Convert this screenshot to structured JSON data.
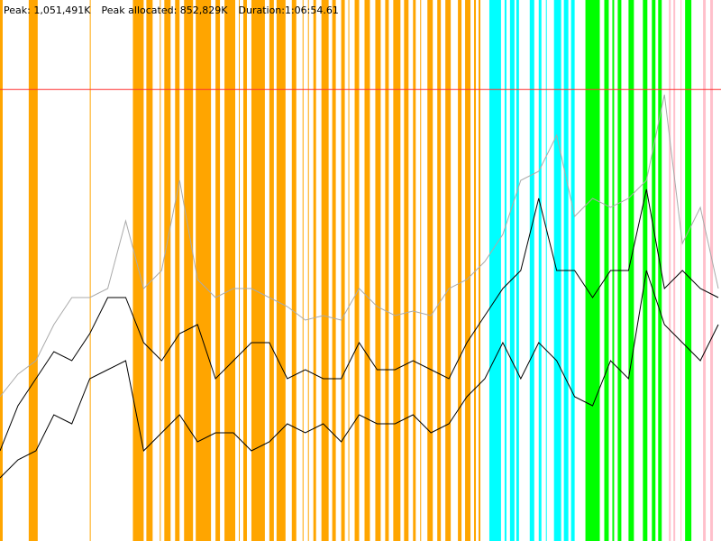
{
  "chart_data": {
    "type": "line",
    "title": [
      "Peak: 1,051,491K",
      "Peak allocated: 852,829K",
      "Duration:1:06:54.61"
    ],
    "xlim": [
      0,
      4015
    ],
    "ylim": [
      0,
      1260000
    ],
    "peak": 1051491,
    "peak_color": "#ff3030",
    "bands": [
      {
        "color": "#ffa500",
        "spans": [
          [
            0,
            15
          ],
          [
            160,
            210
          ],
          [
            500,
            505
          ],
          [
            740,
            800
          ],
          [
            815,
            850
          ],
          [
            890,
            895
          ],
          [
            915,
            950
          ],
          [
            975,
            1000
          ],
          [
            1025,
            1075
          ],
          [
            1090,
            1175
          ],
          [
            1200,
            1225
          ],
          [
            1250,
            1310
          ],
          [
            1330,
            1335
          ],
          [
            1355,
            1375
          ],
          [
            1400,
            1475
          ],
          [
            1500,
            1525
          ],
          [
            1540,
            1590
          ],
          [
            1625,
            1650
          ],
          [
            1685,
            1690
          ],
          [
            1715,
            1720
          ],
          [
            1745,
            1760
          ],
          [
            1790,
            1830
          ],
          [
            1850,
            1870
          ],
          [
            1900,
            1920
          ],
          [
            1940,
            1945
          ],
          [
            1975,
            2000
          ],
          [
            2030,
            2060
          ],
          [
            2090,
            2120
          ],
          [
            2145,
            2165
          ],
          [
            2190,
            2230
          ],
          [
            2250,
            2275
          ],
          [
            2300,
            2315
          ],
          [
            2340,
            2345
          ],
          [
            2380,
            2410
          ],
          [
            2435,
            2455
          ],
          [
            2480,
            2510
          ],
          [
            2550,
            2570
          ],
          [
            2590,
            2620
          ],
          [
            2640,
            2650
          ],
          [
            2665,
            2675
          ]
        ]
      },
      {
        "color": "#00ffff",
        "spans": [
          [
            2725,
            2790
          ],
          [
            2810,
            2820
          ],
          [
            2840,
            2865
          ],
          [
            2875,
            2890
          ],
          [
            2950,
            2975
          ],
          [
            3000,
            3015
          ],
          [
            3040,
            3045
          ],
          [
            3085,
            3125
          ],
          [
            3140,
            3165
          ],
          [
            3180,
            3200
          ]
        ]
      },
      {
        "color": "#00ff00",
        "spans": [
          [
            3260,
            3340
          ],
          [
            3365,
            3390
          ],
          [
            3410,
            3420
          ],
          [
            3440,
            3460
          ],
          [
            3500,
            3530
          ],
          [
            3580,
            3605
          ],
          [
            3630,
            3650
          ],
          [
            3665,
            3685
          ],
          [
            3815,
            3850
          ]
        ]
      },
      {
        "color": "#ffc0cb",
        "spans": [
          [
            3725,
            3735
          ],
          [
            3750,
            3760
          ],
          [
            3790,
            3795
          ],
          [
            3915,
            3930
          ],
          [
            3955,
            3970
          ]
        ]
      }
    ],
    "x": [
      0,
      100,
      200,
      300,
      400,
      500,
      600,
      700,
      800,
      900,
      1000,
      1100,
      1200,
      1300,
      1400,
      1500,
      1600,
      1700,
      1800,
      1900,
      2000,
      2100,
      2200,
      2300,
      2400,
      2500,
      2600,
      2700,
      2800,
      2900,
      3000,
      3100,
      3200,
      3300,
      3400,
      3500,
      3600,
      3700,
      3800,
      3900,
      4000
    ],
    "series": [
      {
        "color": "#aaaaaa",
        "values": [
          336000,
          388500,
          420000,
          504000,
          567000,
          567000,
          588000,
          745500,
          588000,
          630000,
          840000,
          609000,
          567000,
          588000,
          588000,
          567000,
          546000,
          514500,
          525000,
          514500,
          588000,
          546000,
          525000,
          535500,
          525000,
          588000,
          609000,
          651000,
          714000,
          840000,
          861000,
          945000,
          756000,
          798000,
          777000,
          798000,
          840000,
          1039500,
          693000,
          777000,
          588000
        ]
      },
      {
        "color": "#000000",
        "values": [
          210000,
          315000,
          378000,
          441000,
          420000,
          483000,
          567000,
          567000,
          462000,
          420000,
          483000,
          504000,
          378000,
          420000,
          462000,
          462000,
          378000,
          399000,
          378000,
          378000,
          462000,
          399000,
          399000,
          420000,
          399000,
          378000,
          462000,
          525000,
          588000,
          630000,
          798000,
          630000,
          630000,
          567000,
          630000,
          630000,
          819000,
          588000,
          630000,
          588000,
          567000
        ]
      },
      {
        "color": "#000000",
        "values": [
          147000,
          189000,
          210000,
          294000,
          273000,
          378000,
          399000,
          420000,
          210000,
          252000,
          294000,
          231000,
          252000,
          252000,
          210000,
          231000,
          273000,
          252000,
          273000,
          231000,
          294000,
          273000,
          273000,
          294000,
          252000,
          273000,
          336000,
          378000,
          462000,
          378000,
          462000,
          420000,
          336000,
          315000,
          420000,
          378000,
          630000,
          504000,
          462000,
          420000,
          504000
        ]
      }
    ]
  }
}
